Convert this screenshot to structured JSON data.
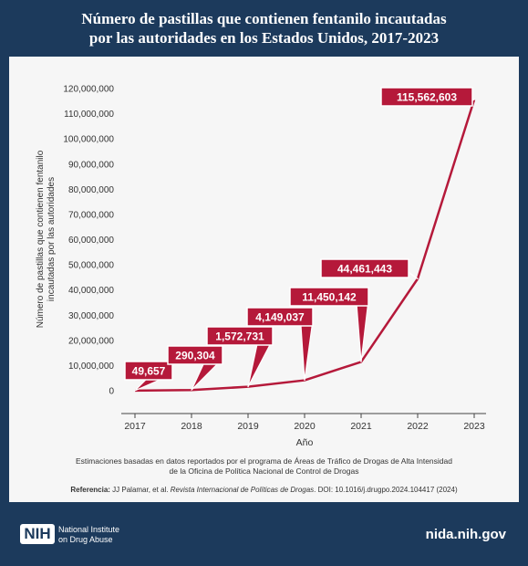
{
  "header": {
    "title_line1": "Número de pastillas que contienen fentanilo incautadas",
    "title_line2": "por las autoridades en los Estados Unidos, 2017-2023"
  },
  "chart_data": {
    "type": "line",
    "x": [
      "2017",
      "2018",
      "2019",
      "2020",
      "2021",
      "2022",
      "2023"
    ],
    "values": [
      49657,
      290304,
      1572731,
      4149037,
      11450142,
      44461443,
      115562603
    ],
    "labels": [
      "49,657",
      "290,304",
      "1,572,731",
      "4,149,037",
      "11,450,142",
      "44,461,443",
      "115,562,603"
    ],
    "y_ticks": [
      0,
      10000000,
      20000000,
      30000000,
      40000000,
      50000000,
      60000000,
      70000000,
      80000000,
      90000000,
      100000000,
      110000000,
      120000000
    ],
    "y_tick_labels": [
      "0",
      "10,000,000",
      "20,000,000",
      "30,000,000",
      "40,000,000",
      "50,000,000",
      "60,000,000",
      "70,000,000",
      "80,000,000",
      "90,000,000",
      "100,000,000",
      "110,000,000",
      "120,000,000"
    ],
    "ylim": [
      0,
      120000000
    ],
    "xlabel": "Año",
    "ylabel_line1": "Número de pastillas que contienen fentanilo",
    "ylabel_line2": "incautadas por las autoridades",
    "grid": false,
    "colors": {
      "line": "#b5193a",
      "callout": "#b5193a",
      "axis": "#444444",
      "panel": "#f6f6f6",
      "header": "#1c3a5c"
    }
  },
  "caption": {
    "line1": "Estimaciones basadas en datos reportados por el programa de Áreas de Tráfico de Drogas de Alta Intensidad",
    "line2": "de la Oficina de Política Nacional de Control de Drogas"
  },
  "reference": {
    "label": "Referencia:",
    "authors": " JJ Palamar, et al. ",
    "journal": "Revista Internacional de Políticas de Drogas",
    "doi": ". DOI: 10.1016/j.drugpo.2024.104417 (2024)"
  },
  "footer": {
    "logo_text": "NIH",
    "institute_line1": "National Institute",
    "institute_line2": "on Drug Abuse",
    "url": "nida.nih.gov"
  }
}
